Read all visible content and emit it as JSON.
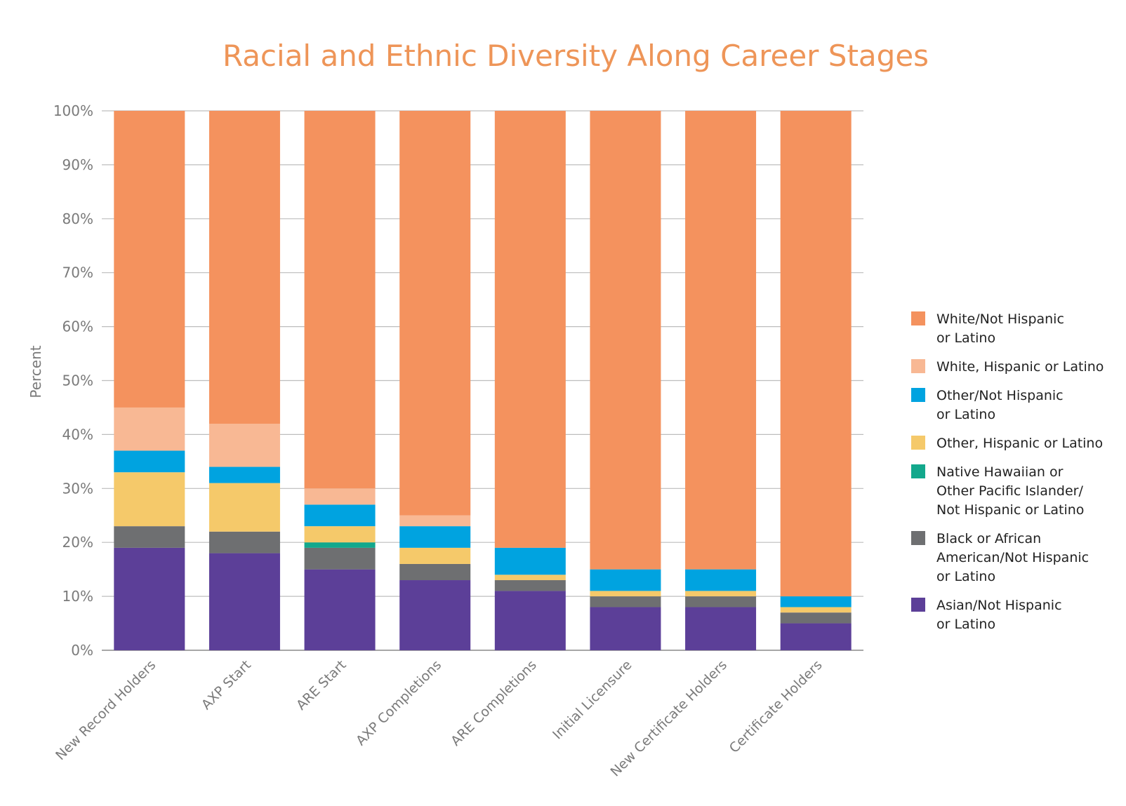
{
  "chart_data": {
    "type": "bar",
    "stacked": true,
    "title": "Racial and Ethnic Diversity Along Career Stages",
    "xlabel": "",
    "ylabel": "Percent",
    "ylim": [
      0,
      100
    ],
    "yticks": [
      "0%",
      "10%",
      "20%",
      "30%",
      "40%",
      "50%",
      "60%",
      "70%",
      "80%",
      "90%",
      "100%"
    ],
    "grid": true,
    "legend_position": "right",
    "categories": [
      "New Record Holders",
      "AXP Start",
      "ARE Start",
      "AXP Completions",
      "ARE Completions",
      "Initial Licensure",
      "New Certificate Holders",
      "Certificate Holders"
    ],
    "series": [
      {
        "name": "Asian/Not Hispanic or Latino",
        "legend_lines": [
          "Asian/Not Hispanic",
          "or Latino"
        ],
        "color": "#5c3f98",
        "values": [
          19,
          18,
          15,
          13,
          11,
          8,
          8,
          5
        ]
      },
      {
        "name": "Black or African American/Not Hispanic or Latino",
        "legend_lines": [
          "Black or African",
          "American/Not Hispanic",
          "or Latino"
        ],
        "color": "#6e6f71",
        "values": [
          4,
          4,
          4,
          3,
          2,
          2,
          2,
          2
        ]
      },
      {
        "name": "Native Hawaiian or Other Pacific Islander/Not Hispanic or Latino",
        "legend_lines": [
          "Native Hawaiian or",
          "Other Pacific Islander/",
          "Not Hispanic or Latino"
        ],
        "color": "#13a88c",
        "values": [
          0,
          0,
          1,
          0,
          0,
          0,
          0,
          0
        ]
      },
      {
        "name": "Other, Hispanic or Latino",
        "legend_lines": [
          "Other, Hispanic or Latino"
        ],
        "color": "#f5c96a",
        "values": [
          10,
          9,
          3,
          3,
          1,
          1,
          1,
          1
        ]
      },
      {
        "name": "Other/Not Hispanic or Latino",
        "legend_lines": [
          "Other/Not Hispanic",
          "or Latino"
        ],
        "color": "#00a3e0",
        "values": [
          4,
          3,
          4,
          4,
          5,
          4,
          4,
          2
        ]
      },
      {
        "name": "White, Hispanic or Latino",
        "legend_lines": [
          "White, Hispanic or Latino"
        ],
        "color": "#f8b894",
        "values": [
          8,
          8,
          3,
          2,
          0,
          0,
          0,
          0
        ]
      },
      {
        "name": "White/Not Hispanic or Latino",
        "legend_lines": [
          "White/Not Hispanic",
          "or Latino"
        ],
        "color": "#f4925e",
        "values": [
          55,
          58,
          70,
          75,
          81,
          85,
          85,
          90
        ]
      }
    ],
    "legend_order": [
      6,
      5,
      4,
      3,
      2,
      1,
      0
    ]
  }
}
